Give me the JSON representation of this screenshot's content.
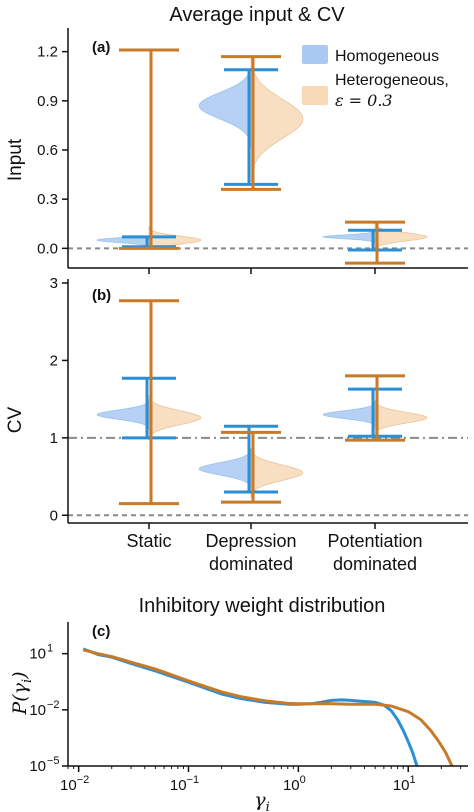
{
  "colors": {
    "homogeneous": "#2b8fd6",
    "homogeneous_fill": "#a9c9f2",
    "heterogeneous": "#c87a28",
    "heterogeneous_fill": "#f7d9b6",
    "reference_line": "#8a8a8a"
  },
  "figure_title": "Average input & CV",
  "legend": {
    "placement": "top-right",
    "entries": [
      "Homogeneous",
      "Heterogeneous,",
      "ε = 0.3"
    ]
  },
  "categories": [
    {
      "line1": "Static",
      "line2": ""
    },
    {
      "line1": "Depression",
      "line2": "dominated"
    },
    {
      "line1": "Potentiation",
      "line2": "dominated"
    }
  ],
  "chart_data": [
    {
      "type": "violin",
      "panel_label": "(a)",
      "title": "Average input & CV",
      "ylabel": "Input",
      "ylim": [
        -0.12,
        1.32
      ],
      "yticks": [
        "0.0",
        "0.3",
        "0.6",
        "0.9",
        "1.2"
      ],
      "ytick_values": [
        0.0,
        0.3,
        0.6,
        0.9,
        1.2
      ],
      "reference_lines": [
        {
          "y": 0.0,
          "style": "dashed"
        }
      ],
      "categories": [
        "Static",
        "Depression dominated",
        "Potentiation dominated"
      ],
      "series": [
        {
          "name": "Homogeneous",
          "side": "left",
          "min": [
            0.01,
            0.39,
            -0.01
          ],
          "max": [
            0.07,
            1.09,
            0.11
          ],
          "mean": [
            0.05,
            0.87,
            0.07
          ],
          "spread": [
            0.015,
            0.08,
            0.012
          ]
        },
        {
          "name": "Heterogeneous, ε = 0.3",
          "side": "right",
          "min": [
            0.0,
            0.36,
            -0.09
          ],
          "max": [
            1.21,
            1.17,
            0.16
          ],
          "mean": [
            0.05,
            0.79,
            0.07
          ],
          "spread": [
            0.025,
            0.12,
            0.025
          ]
        }
      ]
    },
    {
      "type": "violin",
      "panel_label": "(b)",
      "ylabel": "CV",
      "ylim": [
        -0.1,
        3.0
      ],
      "yticks": [
        "0",
        "1",
        "2",
        "3"
      ],
      "ytick_values": [
        0,
        1,
        2,
        3
      ],
      "reference_lines": [
        {
          "y": 0,
          "style": "dashed"
        },
        {
          "y": 1,
          "style": "dashdot"
        }
      ],
      "categories": [
        "Static",
        "Depression dominated",
        "Potentiation dominated"
      ],
      "series": [
        {
          "name": "Homogeneous",
          "side": "left",
          "min": [
            1.0,
            0.3,
            1.02
          ],
          "max": [
            1.77,
            1.15,
            1.63
          ],
          "mean": [
            1.3,
            0.6,
            1.3
          ],
          "spread": [
            0.06,
            0.08,
            0.05
          ]
        },
        {
          "name": "Heterogeneous, ε = 0.3",
          "side": "right",
          "min": [
            0.15,
            0.17,
            0.97
          ],
          "max": [
            2.77,
            1.07,
            1.8
          ],
          "mean": [
            1.26,
            0.55,
            1.26
          ],
          "spread": [
            0.09,
            0.1,
            0.07
          ]
        }
      ]
    },
    {
      "type": "line",
      "panel_label": "(c)",
      "title": "Inhibitory weight distribution",
      "xlabel": "γ",
      "xlabel_sub": "i",
      "ylabel": "P(γ",
      "ylabel_sub": "i",
      "ylabel_close": ")",
      "xscale": "log",
      "yscale": "log",
      "xlim": [
        0.008,
        35
      ],
      "ylim": [
        1e-05,
        300
      ],
      "xticks": [
        {
          "base": "10",
          "exp": "−2",
          "value": 0.01
        },
        {
          "base": "10",
          "exp": "−1",
          "value": 0.1
        },
        {
          "base": "10",
          "exp": "0",
          "value": 1
        },
        {
          "base": "10",
          "exp": "1",
          "value": 10
        }
      ],
      "yticks": [
        {
          "base": "10",
          "exp": "−5",
          "value": 1e-05
        },
        {
          "base": "10",
          "exp": "−2",
          "value": 0.01
        },
        {
          "base": "10",
          "exp": "1",
          "value": 10
        }
      ],
      "series": [
        {
          "name": "Homogeneous",
          "x": [
            0.011,
            0.015,
            0.02,
            0.03,
            0.05,
            0.1,
            0.2,
            0.3,
            0.5,
            0.8,
            1.0,
            1.3,
            1.6,
            2.0,
            2.5,
            3.0,
            4.0,
            5.0,
            6.0,
            7.0,
            8.0,
            9.0,
            10.0,
            11.0,
            12.0
          ],
          "y": [
            18,
            9,
            6.5,
            3,
            1.2,
            0.3,
            0.07,
            0.04,
            0.025,
            0.02,
            0.02,
            0.021,
            0.025,
            0.032,
            0.034,
            0.032,
            0.028,
            0.025,
            0.018,
            0.009,
            0.003,
            0.0008,
            0.0002,
            5e-05,
            1e-05
          ]
        },
        {
          "name": "Heterogeneous, ε = 0.3",
          "x": [
            0.011,
            0.015,
            0.02,
            0.03,
            0.05,
            0.1,
            0.2,
            0.3,
            0.5,
            0.8,
            1.0,
            2.0,
            3.0,
            5.0,
            7.0,
            10.0,
            13.0,
            16.0,
            19.0,
            22.0,
            25.0
          ],
          "y": [
            16,
            10,
            7,
            3.5,
            1.5,
            0.35,
            0.09,
            0.05,
            0.03,
            0.022,
            0.021,
            0.021,
            0.02,
            0.02,
            0.016,
            0.008,
            0.003,
            0.0008,
            0.0002,
            5e-05,
            1e-05
          ]
        }
      ]
    }
  ]
}
